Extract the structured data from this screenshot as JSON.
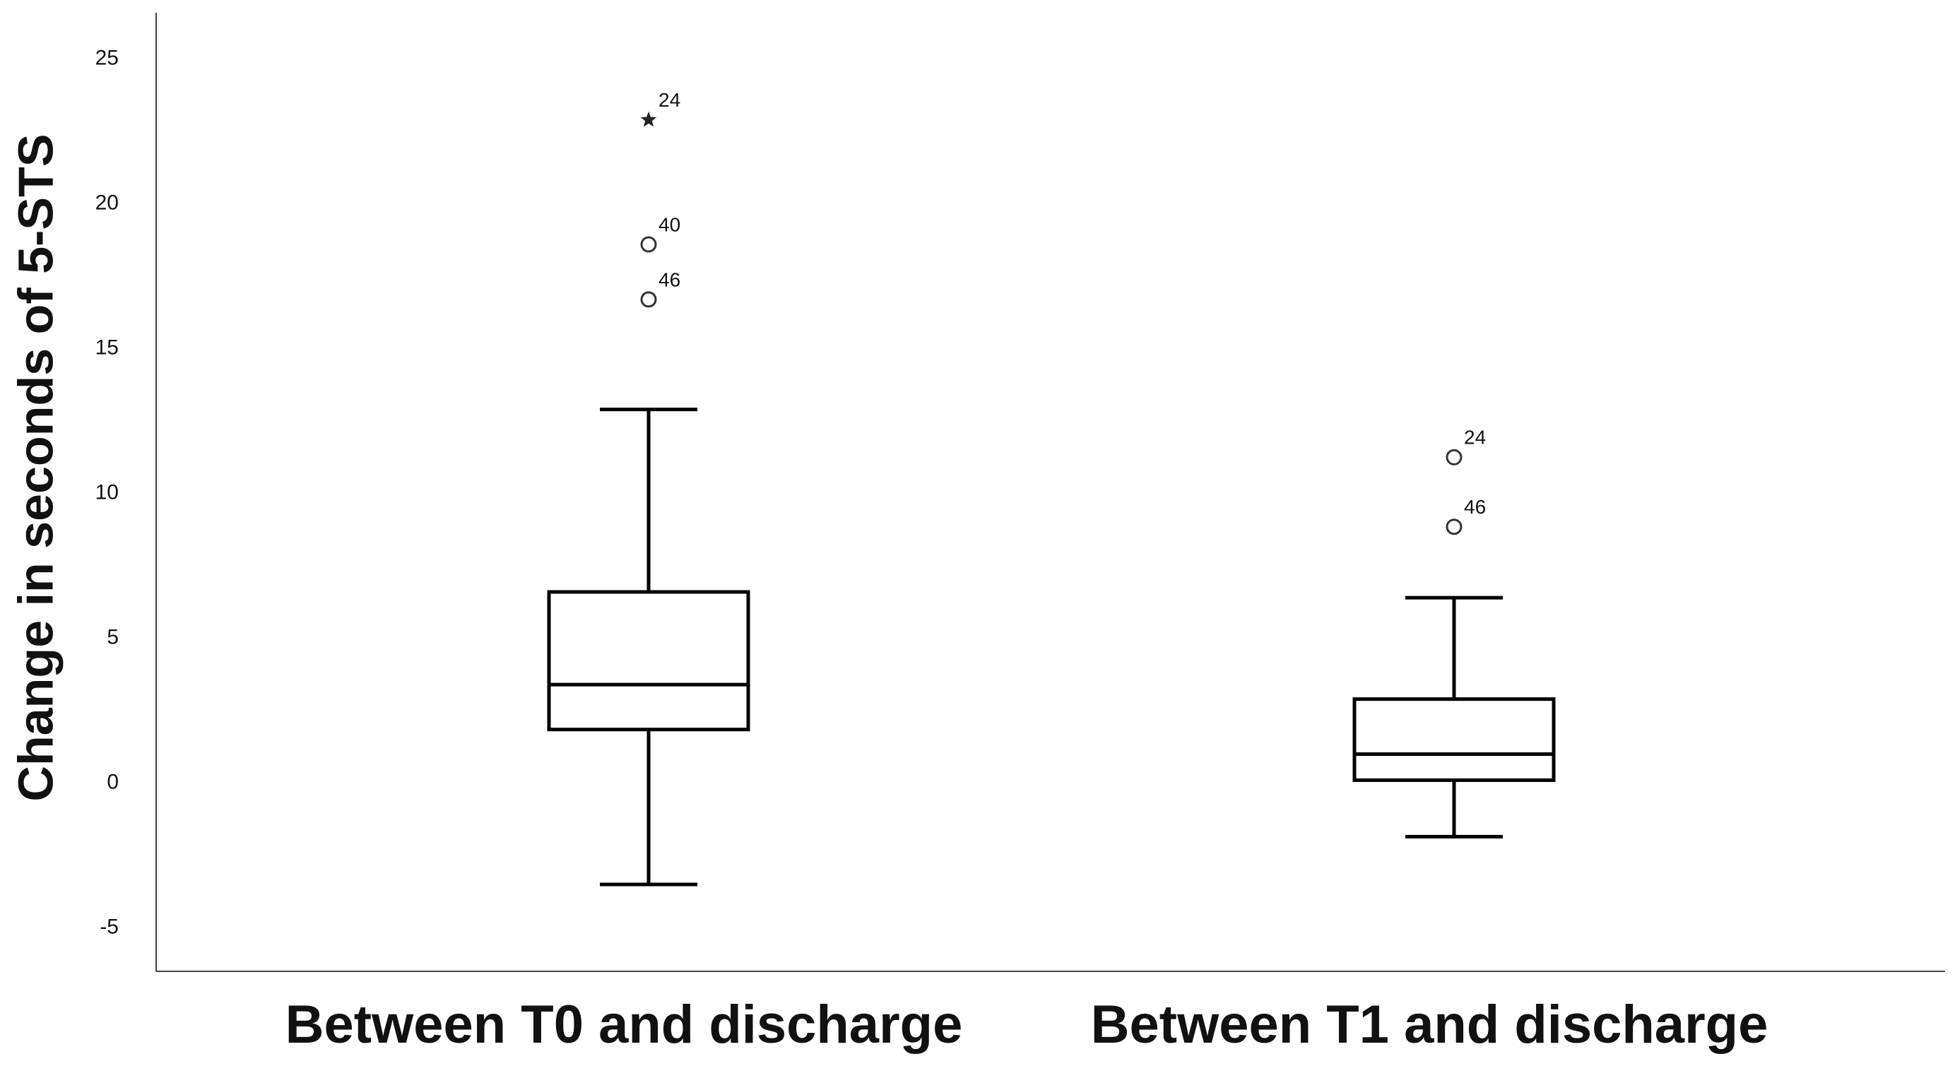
{
  "chart_data": {
    "type": "box",
    "y_label": "Change in seconds of 5-STS",
    "categories": [
      "Between T0 and discharge",
      "Between T1 and discharge"
    ],
    "boxes": [
      {
        "min": -3.5,
        "q1": 1.85,
        "median": 3.4,
        "q3": 6.6,
        "max": 12.9,
        "outliers": [
          {
            "value": 22.9,
            "label": "24",
            "marker": "star"
          },
          {
            "value": 18.6,
            "label": "40",
            "marker": "circle"
          },
          {
            "value": 16.7,
            "label": "46",
            "marker": "circle"
          }
        ]
      },
      {
        "min": -1.85,
        "q1": 0.1,
        "median": 1.0,
        "q3": 2.9,
        "max": 6.4,
        "outliers": [
          {
            "value": 11.25,
            "label": "24",
            "marker": "circle"
          },
          {
            "value": 8.85,
            "label": "46",
            "marker": "circle"
          }
        ]
      }
    ],
    "color": "#000000",
    "ylim": [
      -6.5,
      26.6
    ],
    "yticks": [
      -5,
      0,
      5,
      10,
      15,
      20,
      25
    ],
    "grid": false
  }
}
